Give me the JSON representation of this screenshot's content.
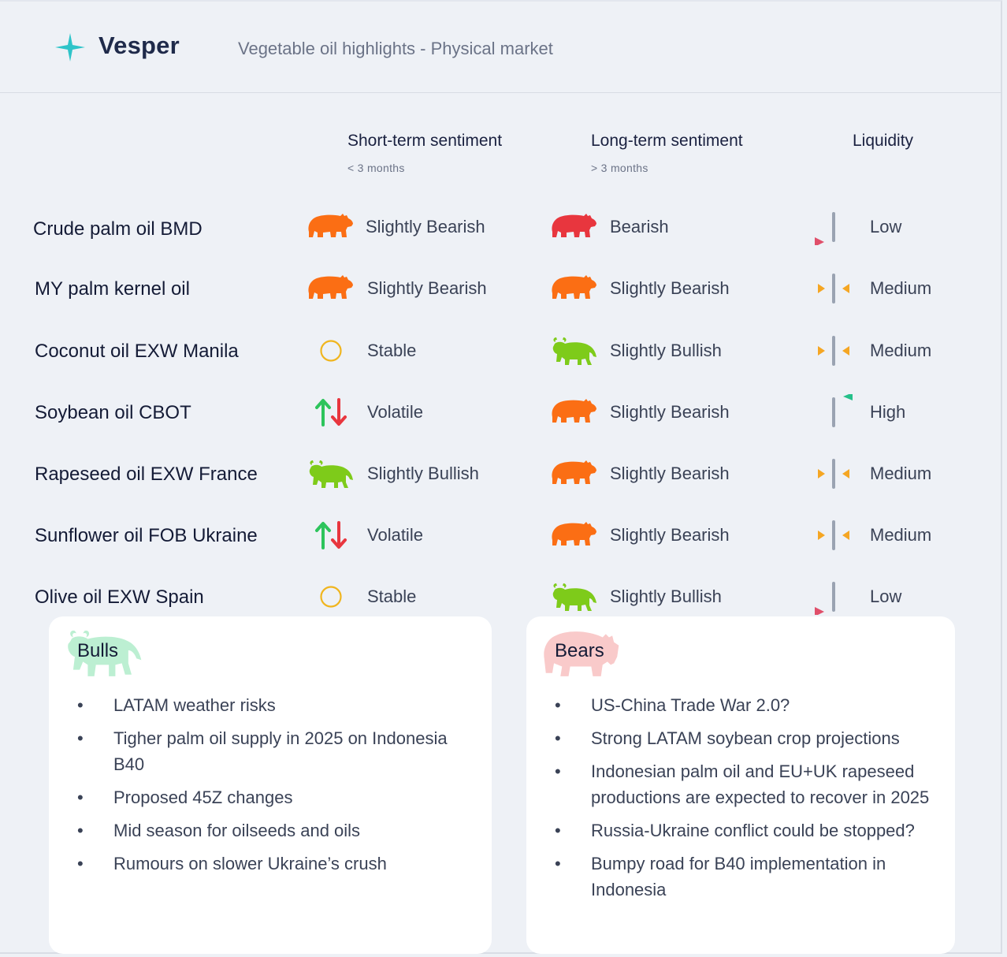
{
  "header": {
    "brand": "Vesper",
    "subtitle": "Vegetable oil highlights - Physical market"
  },
  "columns": {
    "short_term": {
      "title": "Short-term sentiment",
      "sub": "< 3 months"
    },
    "long_term": {
      "title": "Long-term sentiment",
      "sub": "> 3 months"
    },
    "liquidity": {
      "title": "Liquidity"
    }
  },
  "colors": {
    "bear_orange": "#fb6e14",
    "bear_red": "#e8363e",
    "bull_green": "#7ecb1a",
    "stable_ring": "#f0b51e",
    "liq_arrow_amber": "#f5a623",
    "liq_arrow_red": "#e04f6a",
    "liq_arrow_green": "#25c08a",
    "accent_teal": "#2ec4c9"
  },
  "rows": [
    {
      "name": "Crude palm oil BMD",
      "short": {
        "icon": "bear-icon",
        "label": "Slightly Bearish"
      },
      "long": {
        "icon": "bear-icon",
        "label": "Bearish"
      },
      "liquidity": "Low"
    },
    {
      "name": "MY palm kernel oil",
      "short": {
        "icon": "bear-icon",
        "label": "Slightly Bearish"
      },
      "long": {
        "icon": "bear-icon",
        "label": "Slightly Bearish"
      },
      "liquidity": "Medium"
    },
    {
      "name": "Coconut oil EXW Manila",
      "short": {
        "icon": "circle-icon",
        "label": "Stable"
      },
      "long": {
        "icon": "bull-icon",
        "label": "Slightly Bullish"
      },
      "liquidity": "Medium"
    },
    {
      "name": "Soybean oil CBOT",
      "short": {
        "icon": "up-down-arrows-icon",
        "label": "Volatile"
      },
      "long": {
        "icon": "bear-icon",
        "label": "Slightly Bearish"
      },
      "liquidity": "High"
    },
    {
      "name": "Rapeseed oil EXW France",
      "short": {
        "icon": "bull-icon",
        "label": "Slightly Bullish"
      },
      "long": {
        "icon": "bear-icon",
        "label": "Slightly Bearish"
      },
      "liquidity": "Medium"
    },
    {
      "name": "Sunflower oil FOB Ukraine",
      "short": {
        "icon": "up-down-arrows-icon",
        "label": "Volatile"
      },
      "long": {
        "icon": "bear-icon",
        "label": "Slightly Bearish"
      },
      "liquidity": "Medium"
    },
    {
      "name": "Olive oil EXW Spain",
      "short": {
        "icon": "circle-icon",
        "label": "Stable"
      },
      "long": {
        "icon": "bull-icon",
        "label": "Slightly Bullish"
      },
      "liquidity": "Low"
    }
  ],
  "bulls": {
    "title": "Bulls",
    "items": [
      "LATAM weather risks",
      "Tigher palm oil supply in 2025 on Indonesia B40",
      "Proposed 45Z changes",
      "Mid season for oilseeds and oils",
      "Rumours on slower Ukraine’s crush"
    ]
  },
  "bears": {
    "title": "Bears",
    "items": [
      "US-China Trade War 2.0?",
      "Strong LATAM soybean crop projections",
      "Indonesian palm oil and EU+UK rapeseed productions are expected to recover in 2025",
      "Russia-Ukraine conflict could be stopped?",
      "Bumpy road for B40 implementation in Indonesia"
    ]
  }
}
